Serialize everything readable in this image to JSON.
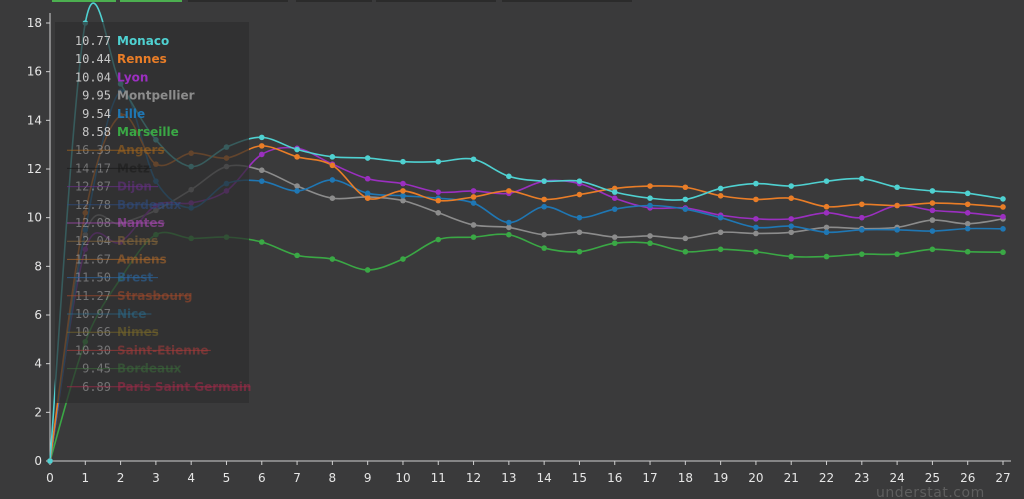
{
  "watermark": "understat.com",
  "chart_data": {
    "type": "line",
    "x": [
      0,
      1,
      2,
      3,
      4,
      5,
      6,
      7,
      8,
      9,
      10,
      11,
      12,
      13,
      14,
      15,
      16,
      17,
      18,
      19,
      20,
      21,
      22,
      23,
      24,
      25,
      26,
      27
    ],
    "xlim": [
      0,
      27
    ],
    "ylim": [
      0,
      18
    ],
    "yticks": [
      0,
      2,
      4,
      6,
      8,
      10,
      12,
      14,
      16,
      18
    ],
    "grid": false,
    "legend_position": "top-left",
    "series": [
      {
        "name": "Monaco",
        "legend_value": "10.77",
        "color": "#4fd1d1",
        "visible": true,
        "values": [
          0,
          18,
          15.5,
          13.2,
          12.1,
          12.9,
          13.3,
          12.8,
          12.5,
          12.45,
          12.3,
          12.3,
          12.4,
          11.7,
          11.5,
          11.5,
          11.05,
          10.8,
          10.75,
          11.2,
          11.4,
          11.3,
          11.5,
          11.6,
          11.25,
          11.1,
          11.0,
          10.77
        ]
      },
      {
        "name": "Rennes",
        "legend_value": "10.44",
        "color": "#e97d27",
        "visible": true,
        "values": [
          0,
          10.2,
          14.2,
          12.2,
          12.65,
          12.45,
          12.95,
          12.5,
          12.15,
          10.8,
          11.1,
          10.7,
          10.85,
          11.1,
          10.75,
          10.95,
          11.2,
          11.3,
          11.25,
          10.9,
          10.75,
          10.8,
          10.45,
          10.55,
          10.5,
          10.6,
          10.55,
          10.44
        ]
      },
      {
        "name": "Lyon",
        "legend_value": "10.04",
        "color": "#9b2fc0",
        "visible": true,
        "values": [
          0,
          8.7,
          9.0,
          10.5,
          10.6,
          11.1,
          12.6,
          12.85,
          12.2,
          11.6,
          11.4,
          11.05,
          11.1,
          11.0,
          11.5,
          11.4,
          10.8,
          10.4,
          10.4,
          10.1,
          9.95,
          9.95,
          10.2,
          10.0,
          10.5,
          10.3,
          10.2,
          10.04
        ]
      },
      {
        "name": "Montpellier",
        "legend_value": "9.95",
        "color": "#8c8c8c",
        "visible": true,
        "values": [
          0,
          9.3,
          9.75,
          10.3,
          11.15,
          12.1,
          11.95,
          11.3,
          10.8,
          10.85,
          10.7,
          10.2,
          9.7,
          9.6,
          9.3,
          9.4,
          9.2,
          9.25,
          9.15,
          9.4,
          9.35,
          9.4,
          9.6,
          9.55,
          9.6,
          9.9,
          9.75,
          9.95
        ]
      },
      {
        "name": "Lille",
        "legend_value": "9.54",
        "color": "#1f77b4",
        "visible": true,
        "values": [
          0,
          9.5,
          15.2,
          11.5,
          10.4,
          11.4,
          11.5,
          11.1,
          11.55,
          11.0,
          10.9,
          10.8,
          10.6,
          9.8,
          10.45,
          10.0,
          10.35,
          10.5,
          10.35,
          10.0,
          9.6,
          9.65,
          9.4,
          9.5,
          9.5,
          9.45,
          9.55,
          9.54
        ]
      },
      {
        "name": "Marseille",
        "legend_value": "8.58",
        "color": "#3aa845",
        "visible": true,
        "values": [
          0,
          4.9,
          7.5,
          9.3,
          9.15,
          9.2,
          9.0,
          8.45,
          8.3,
          7.85,
          8.3,
          9.1,
          9.2,
          9.3,
          8.75,
          8.6,
          8.95,
          8.95,
          8.6,
          8.7,
          8.6,
          8.4,
          8.4,
          8.5,
          8.5,
          8.7,
          8.6,
          8.58
        ]
      },
      {
        "name": "Angers",
        "legend_value": "16.39",
        "color": "#a8681c",
        "visible": false
      },
      {
        "name": "Metz",
        "legend_value": "14.17",
        "color": "#1a1a1a",
        "visible": false
      },
      {
        "name": "Dijon",
        "legend_value": "12.87",
        "color": "#6a2f8a",
        "visible": false
      },
      {
        "name": "Bordeaux",
        "legend_value": "12.78",
        "color": "#2f4f86",
        "visible": false
      },
      {
        "name": "Nantes",
        "legend_value": "12.08",
        "color": "#b44bc0",
        "visible": false
      },
      {
        "name": "Reims",
        "legend_value": "12.04",
        "color": "#8a6a3a",
        "visible": false
      },
      {
        "name": "Amiens",
        "legend_value": "11.67",
        "color": "#b06a2a",
        "visible": false
      },
      {
        "name": "Brest",
        "legend_value": "11.50",
        "color": "#2a6aa8",
        "visible": false
      },
      {
        "name": "Strasbourg",
        "legend_value": "11.27",
        "color": "#a84a2a",
        "visible": false
      },
      {
        "name": "Nice",
        "legend_value": "10.97",
        "color": "#2a6a8a",
        "visible": false
      },
      {
        "name": "Nimes",
        "legend_value": "10.66",
        "color": "#7a6a2a",
        "visible": false
      },
      {
        "name": "Saint-Etienne",
        "legend_value": "10.30",
        "color": "#a83a3a",
        "visible": false
      },
      {
        "name": "Bordeaux",
        "legend_value": "9.45",
        "color": "#3a6a3a",
        "visible": false
      },
      {
        "name": "Paris Saint Germain",
        "legend_value": "6.89",
        "color": "#a82a4a",
        "visible": false
      }
    ]
  }
}
